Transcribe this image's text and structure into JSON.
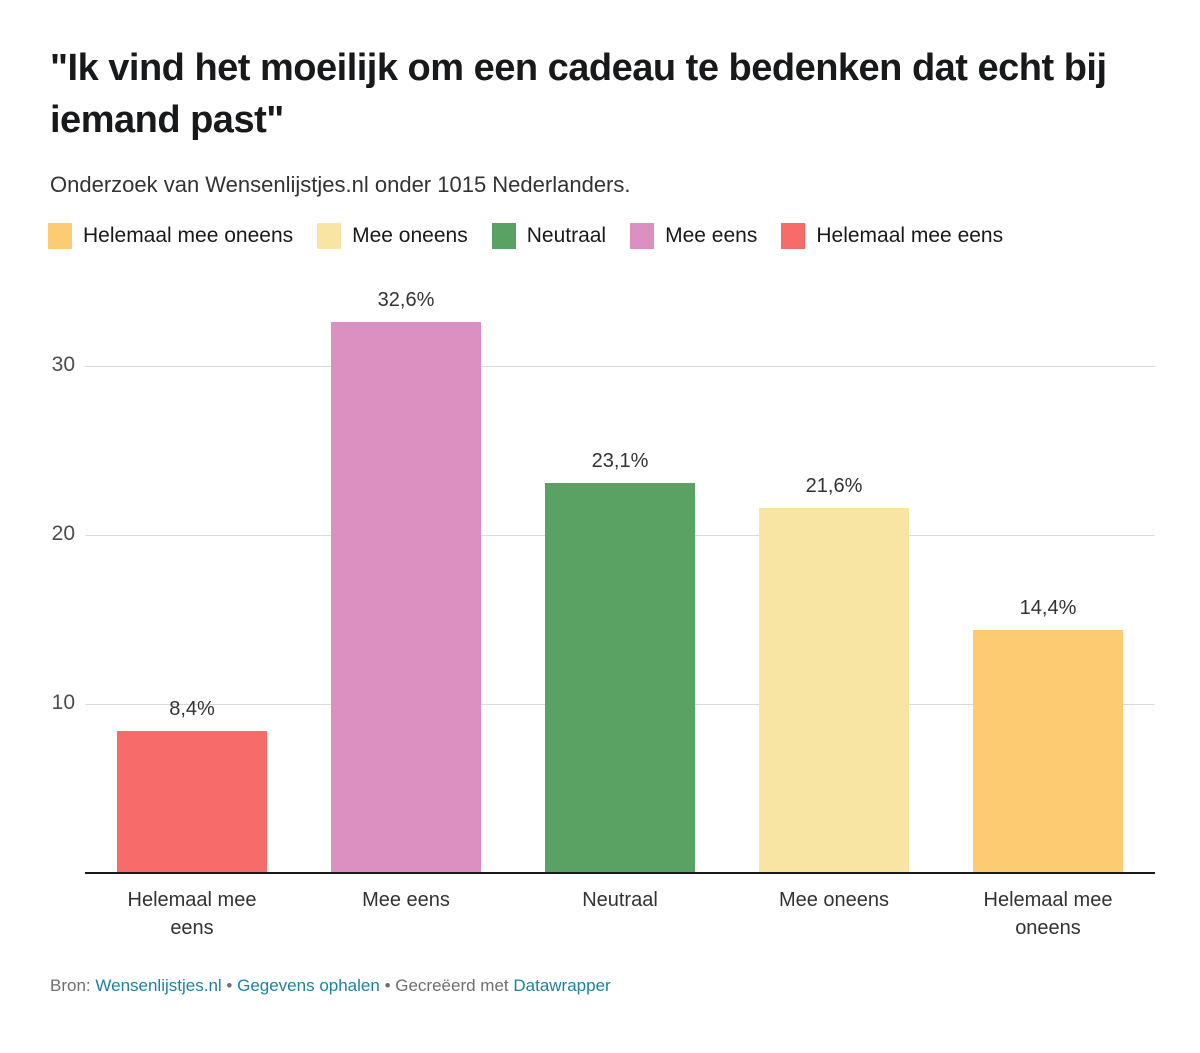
{
  "header": {
    "title": "\"Ik vind het moeilijk om een cadeau te bedenken dat echt bij iemand past\"",
    "subtitle": "Onderzoek van Wensenlijstjes.nl onder 1015 Nederlanders."
  },
  "legend": {
    "items": [
      {
        "label": "Helemaal mee oneens",
        "color": "#fccb72"
      },
      {
        "label": "Mee oneens",
        "color": "#f8e4a3"
      },
      {
        "label": "Neutraal",
        "color": "#5aa264"
      },
      {
        "label": "Mee eens",
        "color": "#db90c1"
      },
      {
        "label": "Helemaal mee eens",
        "color": "#f76c6b"
      }
    ]
  },
  "chart_data": {
    "type": "bar",
    "title": "\"Ik vind het moeilijk om een cadeau te bedenken dat echt bij iemand past\"",
    "subtitle": "Onderzoek van Wensenlijstjes.nl onder 1015 Nederlanders.",
    "categories": [
      "Helemaal mee eens",
      "Mee eens",
      "Neutraal",
      "Mee oneens",
      "Helemaal mee oneens"
    ],
    "values": [
      8.4,
      32.6,
      23.1,
      21.6,
      14.4
    ],
    "value_labels": [
      "8,4%",
      "32,6%",
      "23,1%",
      "21,6%",
      "14,4%"
    ],
    "bar_colors": [
      "#f76c6b",
      "#db90c1",
      "#5aa264",
      "#f8e4a3",
      "#fccb72"
    ],
    "xlabel": "",
    "ylabel": "",
    "yticks": [
      10,
      20,
      30
    ],
    "ylim": [
      0,
      35.5
    ],
    "grid": true,
    "legend_position": "top",
    "colors": {
      "gridline": "#dadada",
      "baseline": "#1a1a1a",
      "tick_text": "#4d4d4d",
      "label_text": "#333333"
    }
  },
  "footer": {
    "source_label": "Bron:",
    "source_link": "Wensenlijstjes.nl",
    "separator": "•",
    "data_link": "Gegevens ophalen",
    "created_label": "Gecreëerd met",
    "tool_link": "Datawrapper",
    "link_color": "#1d81a2"
  }
}
